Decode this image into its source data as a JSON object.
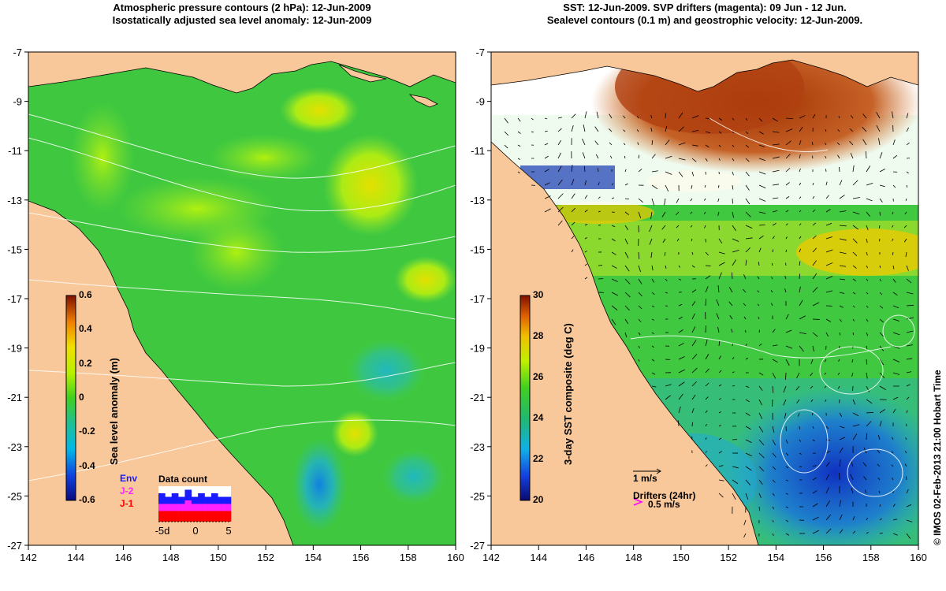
{
  "left_panel": {
    "title_line1": "Atmospheric pressure contours (2 hPa): 12-Jun-2009",
    "title_line2": "Isostatically adjusted sea level anomaly: 12-Jun-2009",
    "colorbar": {
      "label": "Sea level anomaly (m)",
      "ticks": [
        "0.6",
        "0.4",
        "0.2",
        "0",
        "-0.2",
        "-0.4",
        "-0.6"
      ]
    },
    "data_count": {
      "title": "Data count",
      "legend": [
        "Env",
        "J-2",
        "J-1"
      ],
      "legend_colors": [
        "#1a1aff",
        "#ff22ff",
        "#ff0000"
      ],
      "x_ticks": [
        "-5d",
        "0",
        "5"
      ],
      "bars": [
        {
          "j1": 3,
          "j2": 2,
          "env": 3
        },
        {
          "j1": 3,
          "j2": 2,
          "env": 2
        },
        {
          "j1": 3,
          "j2": 2,
          "env": 3
        },
        {
          "j1": 3,
          "j2": 2,
          "env": 2
        },
        {
          "j1": 3,
          "j2": 3,
          "env": 3
        },
        {
          "j1": 3,
          "j2": 2,
          "env": 2
        },
        {
          "j1": 3,
          "j2": 2,
          "env": 3
        },
        {
          "j1": 3,
          "j2": 2,
          "env": 2
        },
        {
          "j1": 3,
          "j2": 2,
          "env": 3
        },
        {
          "j1": 3,
          "j2": 2,
          "env": 2
        },
        {
          "j1": 3,
          "j2": 2,
          "env": 2
        }
      ]
    }
  },
  "right_panel": {
    "title_line1": "SST: 12-Jun-2009. SVP drifters (magenta): 09 Jun - 12 Jun.",
    "title_line2": "Sealevel contours (0.1 m) and geostrophic velocity: 12-Jun-2009.",
    "colorbar": {
      "label": "3-day SST composite (deg C)",
      "ticks": [
        "30",
        "28",
        "26",
        "24",
        "22",
        "20"
      ]
    },
    "velocity_scale_label": "1 m/s",
    "drifters_label": "Drifters (24hr)",
    "drifters_scale_label": "0.5 m/s"
  },
  "axes": {
    "x_ticks": [
      "142",
      "144",
      "146",
      "148",
      "150",
      "152",
      "154",
      "156",
      "158",
      "160"
    ],
    "y_ticks": [
      "-7",
      "-9",
      "-11",
      "-13",
      "-15",
      "-17",
      "-19",
      "-21",
      "-23",
      "-25",
      "-27"
    ],
    "x_range": [
      142,
      160
    ],
    "y_range": [
      -27,
      -7
    ]
  },
  "credit": "© IMOS 02-Feb-2013 21:00 Hobart Time",
  "colors": {
    "land": "#f9c89a",
    "sla_base": "#3ec83e",
    "sla_high": "#a8f000",
    "sla_higher": "#e8e000",
    "sst_cool": "#1fa0e0",
    "sst_warm": "#e8c800",
    "sst_hot": "#b84a00",
    "cloud": "#ffffff"
  }
}
